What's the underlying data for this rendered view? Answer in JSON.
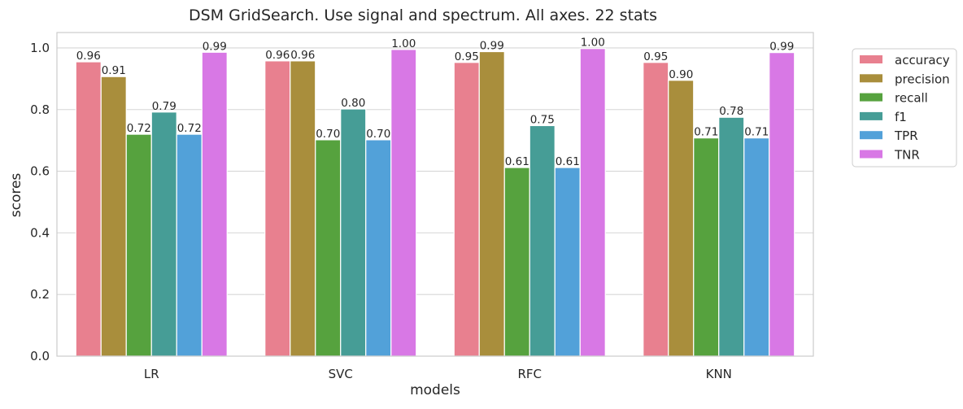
{
  "chart_data": {
    "type": "bar",
    "title": "DSM GridSearch. Use signal and spectrum. All axes. 22 stats",
    "xlabel": "models",
    "ylabel": "scores",
    "categories": [
      "LR",
      "SVC",
      "RFC",
      "KNN"
    ],
    "ylim": [
      0,
      1.05
    ],
    "yticks": [
      0.0,
      0.2,
      0.4,
      0.6,
      0.8,
      1.0
    ],
    "ytick_labels": [
      "0.0",
      "0.2",
      "0.4",
      "0.6",
      "0.8",
      "1.0"
    ],
    "grid": true,
    "legend_placement": "outside-top-right",
    "series": [
      {
        "name": "accuracy",
        "color": "#e8808f",
        "values": [
          0.955,
          0.958,
          0.953,
          0.953
        ],
        "labels": [
          "0.96",
          "0.96",
          "0.95",
          "0.95"
        ]
      },
      {
        "name": "precision",
        "color": "#a98e3c",
        "values": [
          0.907,
          0.958,
          0.988,
          0.895
        ],
        "labels": [
          "0.91",
          "0.96",
          "0.99",
          "0.90"
        ]
      },
      {
        "name": "recall",
        "color": "#56a23e",
        "values": [
          0.72,
          0.702,
          0.612,
          0.708
        ],
        "labels": [
          "0.72",
          "0.70",
          "0.61",
          "0.71"
        ]
      },
      {
        "name": "f1",
        "color": "#469d96",
        "values": [
          0.792,
          0.802,
          0.748,
          0.775
        ],
        "labels": [
          "0.79",
          "0.80",
          "0.75",
          "0.78"
        ]
      },
      {
        "name": "TPR",
        "color": "#52a1d9",
        "values": [
          0.72,
          0.702,
          0.612,
          0.708
        ],
        "labels": [
          "0.72",
          "0.70",
          "0.61",
          "0.71"
        ]
      },
      {
        "name": "TNR",
        "color": "#d878e5",
        "values": [
          0.986,
          0.995,
          0.998,
          0.985
        ],
        "labels": [
          "0.99",
          "1.00",
          "1.00",
          "0.99"
        ]
      }
    ]
  }
}
